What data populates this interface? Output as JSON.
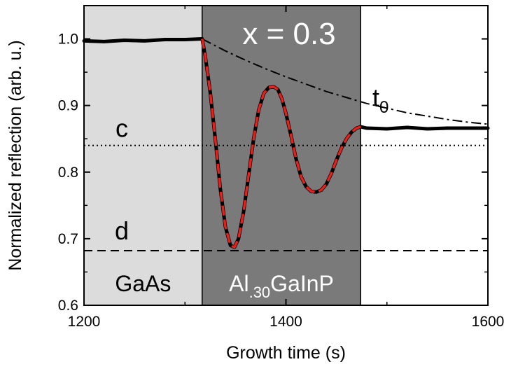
{
  "chart_data": {
    "type": "line",
    "xlabel": "Growth time (s)",
    "ylabel": "Normalized reflection (arb. u.)",
    "xlim": [
      1200,
      1600
    ],
    "ylim": [
      0.6,
      1.05
    ],
    "xticks": [
      1200,
      1400,
      1600
    ],
    "xtick_labels": [
      "1200",
      "1400",
      "1600"
    ],
    "yticks": [
      0.6,
      0.7,
      0.8,
      0.9,
      1.0
    ],
    "ytick_labels": [
      "0.6",
      "0.7",
      "0.8",
      "0.9",
      "1.0"
    ],
    "grid": false,
    "regions": [
      {
        "label": "GaAs",
        "x_start": 1200,
        "x_end": 1317,
        "color": "#dcdcdc"
      },
      {
        "label_main": "Al",
        "label_sub": ".30",
        "label_rest": "GaInP",
        "x_start": 1317,
        "x_end": 1474,
        "color": "#7a7a7a"
      }
    ],
    "annotation_formula": "x = 0.3",
    "reference_lines": [
      {
        "label": "c",
        "y": 0.84,
        "style": "dotted"
      },
      {
        "label": "d",
        "y": 0.682,
        "style": "dashed"
      }
    ],
    "envelope": {
      "label_main": "t",
      "label_sub": "0",
      "style": "dash-dot",
      "x": [
        1317,
        1340,
        1360,
        1380,
        1400,
        1420,
        1440,
        1460,
        1480,
        1500,
        1520,
        1540,
        1560,
        1580,
        1600
      ],
      "y": [
        1.0,
        0.982,
        0.968,
        0.955,
        0.943,
        0.932,
        0.921,
        0.912,
        0.903,
        0.896,
        0.889,
        0.884,
        0.879,
        0.875,
        0.872
      ]
    },
    "series": [
      {
        "style": "measured",
        "color": "#000000",
        "x": [
          1200,
          1220,
          1240,
          1260,
          1280,
          1300,
          1317,
          1320,
          1325,
          1330,
          1335,
          1340,
          1345,
          1349,
          1353,
          1358,
          1363,
          1368,
          1373,
          1378,
          1383,
          1388,
          1392,
          1396,
          1400,
          1405,
          1410,
          1415,
          1420,
          1425,
          1430,
          1435,
          1440,
          1445,
          1450,
          1455,
          1460,
          1465,
          1470,
          1474,
          1480,
          1500,
          1520,
          1540,
          1560,
          1580,
          1600
        ],
        "y": [
          0.997,
          0.996,
          0.998,
          0.997,
          0.999,
          0.999,
          1.0,
          0.975,
          0.92,
          0.85,
          0.775,
          0.718,
          0.69,
          0.687,
          0.7,
          0.74,
          0.795,
          0.85,
          0.893,
          0.918,
          0.927,
          0.928,
          0.924,
          0.91,
          0.888,
          0.855,
          0.82,
          0.793,
          0.778,
          0.771,
          0.77,
          0.773,
          0.782,
          0.798,
          0.818,
          0.836,
          0.85,
          0.86,
          0.866,
          0.868,
          0.866,
          0.865,
          0.867,
          0.865,
          0.866,
          0.866,
          0.866
        ]
      },
      {
        "style": "fit",
        "color": "#e8201c",
        "x": [
          1317,
          1320,
          1325,
          1330,
          1335,
          1340,
          1345,
          1349,
          1353,
          1358,
          1363,
          1368,
          1373,
          1378,
          1383,
          1388,
          1392,
          1396,
          1400,
          1405,
          1410,
          1415,
          1420,
          1425,
          1430,
          1435,
          1440,
          1445,
          1450,
          1455,
          1460,
          1465,
          1470,
          1474
        ],
        "y": [
          1.0,
          0.975,
          0.92,
          0.85,
          0.775,
          0.718,
          0.69,
          0.687,
          0.7,
          0.74,
          0.795,
          0.85,
          0.893,
          0.918,
          0.927,
          0.928,
          0.924,
          0.91,
          0.888,
          0.855,
          0.82,
          0.793,
          0.778,
          0.771,
          0.77,
          0.773,
          0.782,
          0.798,
          0.818,
          0.836,
          0.85,
          0.86,
          0.866,
          0.868
        ]
      }
    ]
  }
}
